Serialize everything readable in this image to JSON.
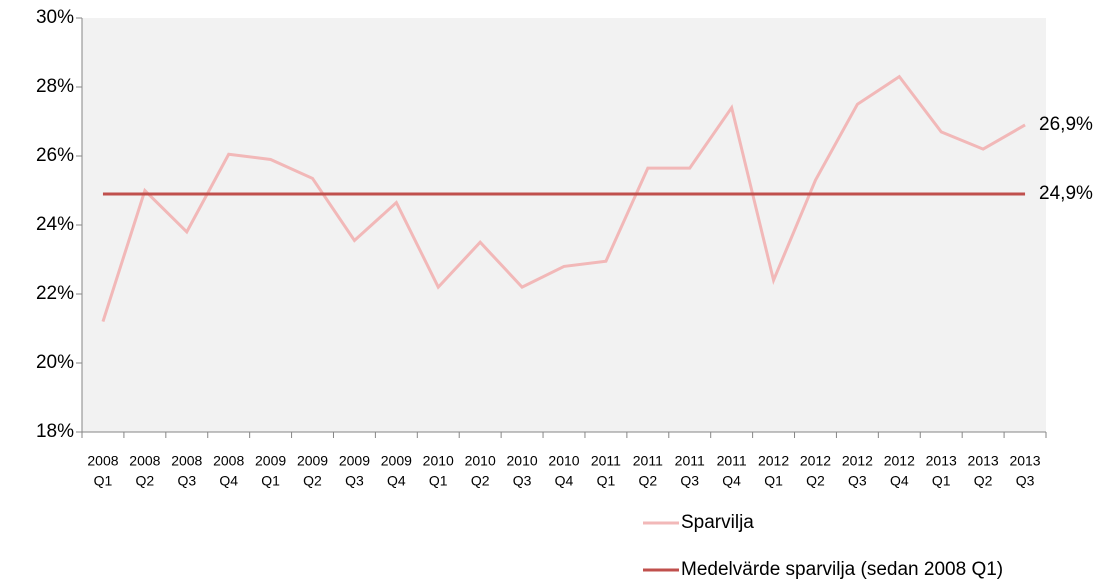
{
  "chart_data": {
    "type": "line",
    "categories": [
      [
        "2008",
        "Q1"
      ],
      [
        "2008",
        "Q2"
      ],
      [
        "2008",
        "Q3"
      ],
      [
        "2008",
        "Q4"
      ],
      [
        "2009",
        "Q1"
      ],
      [
        "2009",
        "Q2"
      ],
      [
        "2009",
        "Q3"
      ],
      [
        "2009",
        "Q4"
      ],
      [
        "2010",
        "Q1"
      ],
      [
        "2010",
        "Q2"
      ],
      [
        "2010",
        "Q3"
      ],
      [
        "2010",
        "Q4"
      ],
      [
        "2011",
        "Q1"
      ],
      [
        "2011",
        "Q2"
      ],
      [
        "2011",
        "Q3"
      ],
      [
        "2011",
        "Q4"
      ],
      [
        "2012",
        "Q1"
      ],
      [
        "2012",
        "Q2"
      ],
      [
        "2012",
        "Q3"
      ],
      [
        "2012",
        "Q4"
      ],
      [
        "2013",
        "Q1"
      ],
      [
        "2013",
        "Q2"
      ],
      [
        "2013",
        "Q3"
      ]
    ],
    "series": [
      {
        "name": "Sparvilja",
        "color": "#f2b8b8",
        "values": [
          21.2,
          25.0,
          23.8,
          26.05,
          25.9,
          25.35,
          23.55,
          24.65,
          22.2,
          23.5,
          22.2,
          22.8,
          22.95,
          25.65,
          25.65,
          27.4,
          22.4,
          25.3,
          27.5,
          28.3,
          26.7,
          26.2,
          26.9
        ],
        "value_labels": [
          null,
          null,
          null,
          null,
          null,
          null,
          null,
          null,
          null,
          null,
          null,
          null,
          null,
          null,
          null,
          null,
          null,
          null,
          null,
          null,
          null,
          null,
          "26,9%"
        ]
      },
      {
        "name": "Medelvärde sparvilja (sedan 2008 Q1)",
        "color": "#c0504d",
        "values": [
          24.9,
          24.9,
          24.9,
          24.9,
          24.9,
          24.9,
          24.9,
          24.9,
          24.9,
          24.9,
          24.9,
          24.9,
          24.9,
          24.9,
          24.9,
          24.9,
          24.9,
          24.9,
          24.9,
          24.9,
          24.9,
          24.9,
          24.9
        ],
        "value_labels": [
          null,
          null,
          null,
          null,
          null,
          null,
          null,
          null,
          null,
          null,
          null,
          null,
          null,
          null,
          null,
          null,
          null,
          null,
          null,
          null,
          null,
          null,
          "24,9%"
        ]
      }
    ],
    "ylim": [
      18,
      30
    ],
    "yticks": [
      {
        "value": 18,
        "label": "18%"
      },
      {
        "value": 20,
        "label": "20%"
      },
      {
        "value": 22,
        "label": "22%"
      },
      {
        "value": 24,
        "label": "24%"
      },
      {
        "value": 26,
        "label": "26%"
      },
      {
        "value": 28,
        "label": "28%"
      },
      {
        "value": 30,
        "label": "30%"
      }
    ],
    "legend": "bottom-right"
  }
}
